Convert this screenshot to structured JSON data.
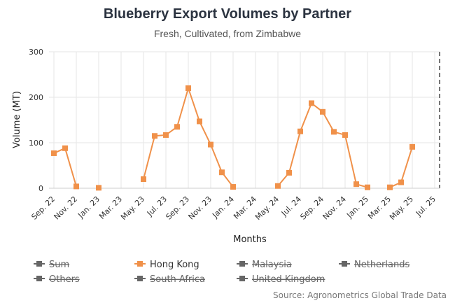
{
  "chart_data": {
    "type": "line",
    "title": "Blueberry Export Volumes by Partner",
    "subtitle": "Fresh, Cultivated, from Zimbabwe",
    "xlabel": "Months",
    "ylabel": "Volume (MT)",
    "ylim": [
      0,
      300
    ],
    "yticks": [
      0,
      100,
      200,
      300
    ],
    "x_tick_labels": [
      "Sep. 22",
      "Nov. 22",
      "Jan. 23",
      "Mar. 23",
      "May. 23",
      "Jul. 23",
      "Sep. 23",
      "Nov. 23",
      "Jan. 24",
      "Mar. 24",
      "May. 24",
      "Jul. 24",
      "Sep. 24",
      "Nov. 24",
      "Jan. 25",
      "Mar. 25",
      "May. 25",
      "Jul. 25"
    ],
    "months": [
      "Sep. 22",
      "Oct. 22",
      "Nov. 22",
      "Dec. 22",
      "Jan. 23",
      "Feb. 23",
      "Mar. 23",
      "Apr. 23",
      "May. 23",
      "Jun. 23",
      "Jul. 23",
      "Aug. 23",
      "Sep. 23",
      "Oct. 23",
      "Nov. 23",
      "Dec. 23",
      "Jan. 24",
      "Feb. 24",
      "Mar. 24",
      "Apr. 24",
      "May. 24",
      "Jun. 24",
      "Jul. 24",
      "Aug. 24",
      "Sep. 24",
      "Oct. 24",
      "Nov. 24",
      "Dec. 24",
      "Jan. 25",
      "Feb. 25",
      "Mar. 25",
      "Apr. 25",
      "May. 25",
      "Jun. 25",
      "Jul. 25"
    ],
    "series": [
      {
        "name": "Hong Kong",
        "color": "#f0914a",
        "values": [
          77,
          88,
          4,
          null,
          1,
          null,
          null,
          null,
          20,
          115,
          117,
          135,
          220,
          147,
          96,
          35,
          3,
          null,
          null,
          null,
          5,
          34,
          125,
          187,
          168,
          124,
          117,
          9,
          2,
          null,
          2,
          13,
          91,
          null,
          null
        ]
      }
    ],
    "legend": [
      {
        "name": "Sum",
        "visible": false
      },
      {
        "name": "Hong Kong",
        "visible": true
      },
      {
        "name": "Malaysia",
        "visible": false
      },
      {
        "name": "Netherlands",
        "visible": false
      },
      {
        "name": "Others",
        "visible": false
      },
      {
        "name": "South Africa",
        "visible": false
      },
      {
        "name": "United Kingdom",
        "visible": false
      }
    ],
    "legend_placement": "bottom",
    "grid": true,
    "source": "Source: Agronometrics Global Trade Data",
    "colors": {
      "hidden_legend": "#666666",
      "plot_line": "#666666"
    }
  }
}
